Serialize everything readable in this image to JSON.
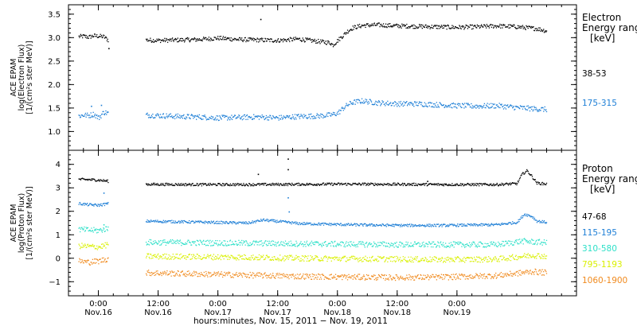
{
  "chart_data": [
    {
      "type": "scatter",
      "panel": "electron",
      "ylabel_lines": [
        "ACE EPAM",
        "log(Electron Flux)",
        "[1/(cm²s ster MeV)]"
      ],
      "ylim": [
        0.6,
        3.7
      ],
      "yticks": [
        1.0,
        1.5,
        2.0,
        2.5,
        3.0,
        3.5
      ],
      "ytick_labels": [
        "1.0",
        "1.5",
        "2.0",
        "2.5",
        "3.0",
        "3.5"
      ],
      "legend_title_lines": [
        "Electron",
        "Energy range",
        "[keV]"
      ],
      "series": [
        {
          "name": "38-53",
          "color": "#000000",
          "segments": [
            {
              "x": [
                -4.0,
                -3.0,
                -2.0,
                -1.0,
                0.0,
                1.0,
                2.0
              ],
              "y": [
                3.03,
                3.04,
                3.02,
                3.05,
                3.04,
                3.03,
                2.95
              ]
            },
            {
              "x": [
                9.5,
                12.0,
                16.0,
                20.0,
                24.0,
                28.0,
                32.0,
                36.0,
                40.0,
                44.0,
                46.5,
                47.0,
                48.0,
                49.0,
                50.0,
                51.0,
                53.0,
                56.0,
                60.0,
                64.0,
                68.0,
                72.0,
                76.0,
                80.0,
                84.0,
                88.0,
                90.0
              ],
              "y": [
                2.96,
                2.95,
                2.96,
                2.97,
                3.0,
                2.97,
                2.96,
                2.95,
                2.98,
                2.93,
                2.9,
                2.85,
                2.95,
                3.05,
                3.15,
                3.22,
                3.27,
                3.28,
                3.26,
                3.25,
                3.24,
                3.23,
                3.24,
                3.26,
                3.24,
                3.2,
                3.15
              ]
            }
          ],
          "spikes": [
            {
              "x": 32.5,
              "y": 3.4
            },
            {
              "x": 2.0,
              "y": 2.78
            }
          ]
        },
        {
          "name": "175-315",
          "color": "#1e7fd6",
          "segments": [
            {
              "x": [
                -4.0,
                -3.0,
                -2.0,
                -1.0,
                0.0,
                1.0,
                2.0
              ],
              "y": [
                1.34,
                1.36,
                1.35,
                1.38,
                1.3,
                1.42,
                1.4
              ]
            },
            {
              "x": [
                9.5,
                12.0,
                16.0,
                20.0,
                24.0,
                28.0,
                32.0,
                36.0,
                40.0,
                44.0,
                46.5,
                48.0,
                49.0,
                50.0,
                51.0,
                53.0,
                56.0,
                60.0,
                64.0,
                68.0,
                72.0,
                76.0,
                80.0,
                84.0,
                88.0,
                90.0
              ],
              "y": [
                1.36,
                1.35,
                1.33,
                1.32,
                1.3,
                1.31,
                1.32,
                1.3,
                1.33,
                1.34,
                1.36,
                1.4,
                1.5,
                1.58,
                1.63,
                1.66,
                1.62,
                1.6,
                1.6,
                1.58,
                1.56,
                1.55,
                1.56,
                1.52,
                1.49,
                1.48
              ]
            }
          ],
          "spikes": [
            {
              "x": -1.5,
              "y": 1.55
            },
            {
              "x": 0.5,
              "y": 1.57
            }
          ]
        }
      ]
    },
    {
      "type": "scatter",
      "panel": "proton",
      "ylabel_lines": [
        "ACE EPAM",
        "log(Proton Flux)",
        "[1/(cm²s ster MeV)]"
      ],
      "ylim": [
        -1.6,
        4.6
      ],
      "yticks": [
        -1,
        0,
        1,
        2,
        3,
        4
      ],
      "ytick_labels": [
        "−1",
        "0",
        "1",
        "2",
        "3",
        "4"
      ],
      "legend_title_lines": [
        "Proton",
        "Energy range",
        "[keV]"
      ],
      "series": [
        {
          "name": "47-68",
          "color": "#000000",
          "segments": [
            {
              "x": [
                -4.0,
                -2.0,
                0.0,
                2.0
              ],
              "y": [
                3.38,
                3.37,
                3.35,
                3.3
              ]
            },
            {
              "x": [
                9.5,
                20.0,
                30.0,
                40.0,
                50.0,
                60.0,
                70.0,
                80.0,
                84.0,
                85.0,
                86.0,
                87.0,
                88.0,
                90.0
              ],
              "y": [
                3.17,
                3.16,
                3.16,
                3.17,
                3.18,
                3.17,
                3.16,
                3.16,
                3.2,
                3.6,
                3.75,
                3.5,
                3.22,
                3.18
              ]
            }
          ],
          "spikes": [
            {
              "x": 32.0,
              "y": 3.6
            },
            {
              "x": 38.0,
              "y": 4.25
            },
            {
              "x": 38.0,
              "y": 3.8
            },
            {
              "x": 66.0,
              "y": 3.3
            }
          ]
        },
        {
          "name": "115-195",
          "color": "#1e7fd6",
          "segments": [
            {
              "x": [
                -4.0,
                -2.0,
                0.0,
                2.0
              ],
              "y": [
                2.35,
                2.3,
                2.28,
                2.35
              ]
            },
            {
              "x": [
                9.5,
                20.0,
                30.0,
                33.0,
                38.0,
                40.0,
                50.0,
                60.0,
                70.0,
                80.0,
                84.0,
                85.5,
                87.0,
                88.0,
                90.0
              ],
              "y": [
                1.6,
                1.56,
                1.52,
                1.65,
                1.55,
                1.5,
                1.45,
                1.42,
                1.42,
                1.45,
                1.55,
                1.9,
                1.8,
                1.6,
                1.55
              ]
            }
          ],
          "spikes": [
            {
              "x": 38.0,
              "y": 2.6
            },
            {
              "x": 38.2,
              "y": 2.0
            },
            {
              "x": 1.0,
              "y": 2.8
            }
          ]
        },
        {
          "name": "310-580",
          "color": "#2ee0c8",
          "segments": [
            {
              "x": [
                -4.0,
                -2.0,
                0.0,
                2.0
              ],
              "y": [
                1.25,
                1.22,
                1.2,
                1.3
              ]
            },
            {
              "x": [
                9.5,
                20.0,
                30.0,
                40.0,
                50.0,
                60.0,
                70.0,
                80.0,
                85.0,
                87.0,
                90.0
              ],
              "y": [
                0.7,
                0.68,
                0.66,
                0.64,
                0.62,
                0.6,
                0.6,
                0.6,
                0.75,
                0.72,
                0.68
              ]
            }
          ],
          "spikes": [
            {
              "x": 1.0,
              "y": 1.45
            }
          ]
        },
        {
          "name": "795-1193",
          "color": "#d9f000",
          "segments": [
            {
              "x": [
                -4.0,
                -2.0,
                0.0,
                2.0
              ],
              "y": [
                0.55,
                0.52,
                0.5,
                0.6
              ]
            },
            {
              "x": [
                9.5,
                20.0,
                30.0,
                40.0,
                50.0,
                60.0,
                70.0,
                80.0,
                85.0,
                87.0,
                90.0
              ],
              "y": [
                0.1,
                0.08,
                0.06,
                0.02,
                0.0,
                -0.02,
                -0.04,
                -0.02,
                0.1,
                0.15,
                0.1
              ]
            }
          ],
          "spikes": []
        },
        {
          "name": "1060-1900",
          "color": "#f08a1e",
          "segments": [
            {
              "x": [
                -4.0,
                -2.0,
                0.0,
                2.0
              ],
              "y": [
                -0.1,
                -0.15,
                -0.1,
                0.0
              ]
            },
            {
              "x": [
                9.5,
                20.0,
                30.0,
                40.0,
                50.0,
                60.0,
                70.0,
                80.0,
                85.0,
                87.0,
                90.0
              ],
              "y": [
                -0.6,
                -0.65,
                -0.7,
                -0.75,
                -0.78,
                -0.8,
                -0.78,
                -0.72,
                -0.6,
                -0.55,
                -0.6
              ]
            }
          ],
          "spikes": []
        }
      ]
    }
  ],
  "x_axis": {
    "range_hours": [
      -6.0,
      96.0
    ],
    "ticks": [
      {
        "x": 0,
        "time": "0:00",
        "date": "Nov.16"
      },
      {
        "x": 12,
        "time": "12:00",
        "date": "Nov.16"
      },
      {
        "x": 24,
        "time": "0:00",
        "date": "Nov.17"
      },
      {
        "x": 36,
        "time": "12:00",
        "date": "Nov.17"
      },
      {
        "x": 48,
        "time": "0:00",
        "date": "Nov.18"
      },
      {
        "x": 60,
        "time": "12:00",
        "date": "Nov.18"
      },
      {
        "x": 72,
        "time": "0:00",
        "date": "Nov.19"
      }
    ],
    "label": "hours:minutes, Nov. 15, 2011 − Nov. 19, 2011"
  }
}
